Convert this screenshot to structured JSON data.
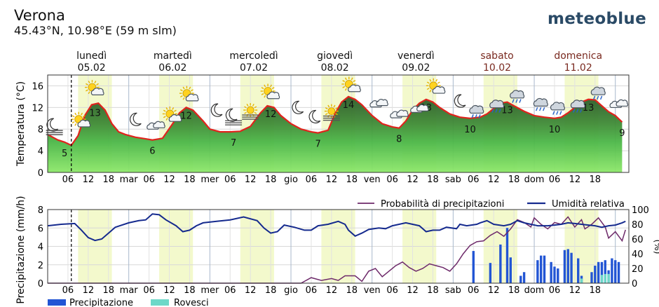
{
  "header": {
    "location": "Verona",
    "coordinates": "45.43°N, 10.98°E (59 m slm)",
    "brand": "meteoblue"
  },
  "days": [
    {
      "name": "lunedì",
      "date": "05.02",
      "weekend": false
    },
    {
      "name": "martedì",
      "date": "06.02",
      "weekend": false
    },
    {
      "name": "mercoledì",
      "date": "07.02",
      "weekend": false
    },
    {
      "name": "giovedì",
      "date": "08.02",
      "weekend": false
    },
    {
      "name": "venerdì",
      "date": "09.02",
      "weekend": false
    },
    {
      "name": "sabato",
      "date": "10.02",
      "weekend": true
    },
    {
      "name": "domenica",
      "date": "11.02",
      "weekend": true
    }
  ],
  "weekend_color": "#7a2a20",
  "time_labels": [
    "06",
    "12",
    "18",
    "mar",
    "06",
    "12",
    "18",
    "mer",
    "06",
    "12",
    "18",
    "gio",
    "06",
    "12",
    "18",
    "ven",
    "06",
    "12",
    "18",
    "sab",
    "06",
    "12",
    "18",
    "dom",
    "06",
    "12",
    "18"
  ],
  "now_hour": 7,
  "weather_icons": [
    {
      "hour": 2,
      "temp": 8.4,
      "kind": "moon-fog"
    },
    {
      "hour": 10,
      "temp": 9.3,
      "kind": "sun-cloud"
    },
    {
      "hour": 14,
      "temp": 15.2,
      "kind": "sun-cloud"
    },
    {
      "hour": 26,
      "temp": 9.8,
      "kind": "moon"
    },
    {
      "hour": 32,
      "temp": 8.7,
      "kind": "cloud"
    },
    {
      "hour": 37,
      "temp": 10.3,
      "kind": "sun-cloud"
    },
    {
      "hour": 42,
      "temp": 14.1,
      "kind": "sun-cloud"
    },
    {
      "hour": 50,
      "temp": 11.5,
      "kind": "moon"
    },
    {
      "hour": 55,
      "temp": 10.2,
      "kind": "moon-fog"
    },
    {
      "hour": 60,
      "temp": 11.0,
      "kind": "sun-fog"
    },
    {
      "hour": 66,
      "temp": 14.5,
      "kind": "sun-cloud"
    },
    {
      "hour": 74,
      "temp": 12.0,
      "kind": "moon"
    },
    {
      "hour": 79,
      "temp": 10.3,
      "kind": "moon"
    },
    {
      "hour": 84,
      "temp": 10.8,
      "kind": "sun-fog"
    },
    {
      "hour": 90,
      "temp": 15.8,
      "kind": "sun-cloud"
    },
    {
      "hour": 98,
      "temp": 12.8,
      "kind": "cloud"
    },
    {
      "hour": 104,
      "temp": 10.8,
      "kind": "cloud"
    },
    {
      "hour": 110,
      "temp": 11.8,
      "kind": "cloud"
    },
    {
      "hour": 115,
      "temp": 15.5,
      "kind": "sun-cloud"
    },
    {
      "hour": 122,
      "temp": 13.2,
      "kind": "moon"
    },
    {
      "hour": 127,
      "temp": 11.5,
      "kind": "rain"
    },
    {
      "hour": 133,
      "temp": 12.5,
      "kind": "rain"
    },
    {
      "hour": 139,
      "temp": 14.3,
      "kind": "rain"
    },
    {
      "hour": 146,
      "temp": 12.8,
      "kind": "rain"
    },
    {
      "hour": 151,
      "temp": 12.1,
      "kind": "rain"
    },
    {
      "hour": 157,
      "temp": 12.5,
      "kind": "rain"
    },
    {
      "hour": 163,
      "temp": 14.9,
      "kind": "rain"
    },
    {
      "hour": 169,
      "temp": 12.7,
      "kind": "cloud"
    }
  ],
  "chart_data": [
    {
      "type": "area",
      "ylabel": "Temperatura (°C)",
      "ylim": [
        0,
        18
      ],
      "yticks": [
        0,
        4,
        8,
        12,
        16
      ],
      "x_unit": "hours from 05.02 00:00",
      "temperature": [
        [
          0,
          7
        ],
        [
          3,
          6
        ],
        [
          5,
          5.6
        ],
        [
          7,
          5
        ],
        [
          9,
          6.8
        ],
        [
          11,
          10.5
        ],
        [
          13,
          12.5
        ],
        [
          15,
          12.8
        ],
        [
          17,
          11.5
        ],
        [
          19,
          9
        ],
        [
          21,
          7.5
        ],
        [
          23,
          7
        ],
        [
          26,
          6.5
        ],
        [
          29,
          6.2
        ],
        [
          31,
          6
        ],
        [
          34,
          6.3
        ],
        [
          37,
          9
        ],
        [
          39,
          11
        ],
        [
          41,
          12
        ],
        [
          43,
          11.5
        ],
        [
          46,
          9.5
        ],
        [
          48,
          8
        ],
        [
          51,
          7.5
        ],
        [
          54,
          7.5
        ],
        [
          57,
          7.6
        ],
        [
          60,
          8.5
        ],
        [
          63,
          11
        ],
        [
          65,
          12.3
        ],
        [
          67,
          12
        ],
        [
          69,
          10.5
        ],
        [
          72,
          9
        ],
        [
          75,
          8
        ],
        [
          78,
          7.5
        ],
        [
          80,
          7.3
        ],
        [
          83,
          7.8
        ],
        [
          85,
          10.8
        ],
        [
          87,
          13
        ],
        [
          89,
          14
        ],
        [
          91,
          13.5
        ],
        [
          93,
          12.5
        ],
        [
          96,
          10.5
        ],
        [
          99,
          9
        ],
        [
          102,
          8.4
        ],
        [
          104,
          8.2
        ],
        [
          106,
          9.5
        ],
        [
          108,
          11.5
        ],
        [
          110,
          12.8
        ],
        [
          112,
          13.5
        ],
        [
          114,
          13
        ],
        [
          116,
          12
        ],
        [
          119,
          10.8
        ],
        [
          122,
          10.2
        ],
        [
          125,
          10
        ],
        [
          128,
          10.2
        ],
        [
          130,
          10.8
        ],
        [
          132,
          11.8
        ],
        [
          134,
          12.8
        ],
        [
          136,
          13
        ],
        [
          138,
          12.3
        ],
        [
          141,
          11.3
        ],
        [
          144,
          10.5
        ],
        [
          147,
          10.2
        ],
        [
          150,
          10
        ],
        [
          152,
          10.2
        ],
        [
          154,
          11
        ],
        [
          156,
          12
        ],
        [
          158,
          13
        ],
        [
          160,
          13.5
        ],
        [
          162,
          13.4
        ],
        [
          164,
          12.3
        ],
        [
          166,
          11.2
        ],
        [
          168,
          10.5
        ],
        [
          170,
          9.3
        ]
      ],
      "labels": [
        {
          "hour": 5,
          "value": "5",
          "pos": "below"
        },
        {
          "hour": 14,
          "value": "13",
          "pos": "above"
        },
        {
          "hour": 31,
          "value": "6",
          "pos": "below"
        },
        {
          "hour": 41,
          "value": "12",
          "pos": "above"
        },
        {
          "hour": 55,
          "value": "7",
          "pos": "below"
        },
        {
          "hour": 66,
          "value": "12",
          "pos": "above"
        },
        {
          "hour": 80,
          "value": "7",
          "pos": "below"
        },
        {
          "hour": 89,
          "value": "14",
          "pos": "above"
        },
        {
          "hour": 104,
          "value": "8",
          "pos": "below"
        },
        {
          "hour": 112,
          "value": "13",
          "pos": "above"
        },
        {
          "hour": 125,
          "value": "10",
          "pos": "below"
        },
        {
          "hour": 136,
          "value": "13",
          "pos": "above"
        },
        {
          "hour": 150,
          "value": "10",
          "pos": "below"
        },
        {
          "hour": 160,
          "value": "13",
          "pos": "above"
        },
        {
          "hour": 170,
          "value": "9",
          "pos": "below"
        }
      ]
    },
    {
      "type": "bar",
      "ylabel": "Precipitazione (mm/h)",
      "ylim": [
        0,
        8
      ],
      "yticks": [
        0,
        2,
        4,
        6,
        8
      ],
      "ylim_right": [
        0,
        100
      ],
      "yticks_right": [
        0,
        20,
        40,
        60,
        80,
        100
      ],
      "legend": {
        "probability": "Probabilità di precipitazioni",
        "humidity": "Umidità relativa",
        "precipitation": "Precipitazione",
        "showers": "Rovesci"
      },
      "precipitation": [
        [
          126,
          3.5
        ],
        [
          131,
          2.2
        ],
        [
          134,
          4.2
        ],
        [
          136,
          6
        ],
        [
          137,
          2.8
        ],
        [
          140,
          0.8
        ],
        [
          141,
          1.2
        ],
        [
          145,
          2.5
        ],
        [
          146,
          3.0
        ],
        [
          147,
          3.0
        ],
        [
          149,
          2.3
        ],
        [
          150,
          1.8
        ],
        [
          151,
          1.6
        ],
        [
          153,
          3.6
        ],
        [
          154,
          3.7
        ],
        [
          155,
          3.3
        ],
        [
          157,
          2.7
        ],
        [
          158,
          0.8
        ],
        [
          161,
          1.2
        ],
        [
          162,
          1.9
        ],
        [
          163,
          2.3
        ],
        [
          164,
          2.3
        ],
        [
          165,
          2.5
        ],
        [
          166,
          1.4
        ],
        [
          167,
          2.7
        ],
        [
          168,
          2.5
        ],
        [
          169,
          2.3
        ]
      ],
      "showers": [
        [
          158,
          0.5
        ],
        [
          164,
          0.9
        ],
        [
          165,
          1.0
        ],
        [
          166,
          1.0
        ]
      ],
      "probability": [
        [
          0,
          0
        ],
        [
          75,
          0
        ],
        [
          78,
          0.6
        ],
        [
          81,
          0.3
        ],
        [
          84,
          0.5
        ],
        [
          86,
          0.3
        ],
        [
          88,
          0.8
        ],
        [
          91,
          0.8
        ],
        [
          93,
          0.2
        ],
        [
          95,
          1.3
        ],
        [
          97,
          1.6
        ],
        [
          99,
          0.7
        ],
        [
          101,
          1.3
        ],
        [
          103,
          1.9
        ],
        [
          105,
          2.3
        ],
        [
          107,
          1.7
        ],
        [
          109,
          1.3
        ],
        [
          111,
          1.6
        ],
        [
          113,
          2.1
        ],
        [
          115,
          1.9
        ],
        [
          117,
          1.7
        ],
        [
          119,
          1.3
        ],
        [
          121,
          2.1
        ],
        [
          123,
          3.2
        ],
        [
          125,
          4.1
        ],
        [
          127,
          4.5
        ],
        [
          129,
          4.6
        ],
        [
          131,
          5.2
        ],
        [
          133,
          5.6
        ],
        [
          135,
          5.1
        ],
        [
          137,
          5.9
        ],
        [
          139,
          6.9
        ],
        [
          141,
          6.6
        ],
        [
          143,
          6.1
        ],
        [
          144,
          7.1
        ],
        [
          146,
          6.4
        ],
        [
          148,
          5.9
        ],
        [
          150,
          6.6
        ],
        [
          152,
          6.4
        ],
        [
          154,
          7.2
        ],
        [
          156,
          6.1
        ],
        [
          158,
          6.9
        ],
        [
          159,
          5.9
        ],
        [
          161,
          6.4
        ],
        [
          163,
          7.1
        ],
        [
          165,
          6.1
        ],
        [
          166,
          4.9
        ],
        [
          168,
          5.6
        ],
        [
          170,
          4.6
        ],
        [
          171,
          5.8
        ]
      ],
      "humidity": [
        [
          0,
          78
        ],
        [
          4,
          80
        ],
        [
          8,
          81
        ],
        [
          10,
          72
        ],
        [
          12,
          62
        ],
        [
          14,
          58
        ],
        [
          16,
          60
        ],
        [
          18,
          68
        ],
        [
          20,
          76
        ],
        [
          24,
          82
        ],
        [
          27,
          85
        ],
        [
          29,
          86
        ],
        [
          31,
          94
        ],
        [
          33,
          93
        ],
        [
          35,
          86
        ],
        [
          38,
          78
        ],
        [
          40,
          70
        ],
        [
          42,
          72
        ],
        [
          44,
          78
        ],
        [
          46,
          82
        ],
        [
          50,
          84
        ],
        [
          54,
          86
        ],
        [
          58,
          90
        ],
        [
          62,
          85
        ],
        [
          64,
          75
        ],
        [
          66,
          68
        ],
        [
          68,
          70
        ],
        [
          70,
          79
        ],
        [
          73,
          76
        ],
        [
          76,
          72
        ],
        [
          78,
          72
        ],
        [
          80,
          78
        ],
        [
          83,
          80
        ],
        [
          86,
          84
        ],
        [
          88,
          80
        ],
        [
          89,
          72
        ],
        [
          91,
          64
        ],
        [
          93,
          68
        ],
        [
          95,
          73
        ],
        [
          98,
          75
        ],
        [
          100,
          74
        ],
        [
          102,
          78
        ],
        [
          104,
          80
        ],
        [
          106,
          82
        ],
        [
          108,
          80
        ],
        [
          110,
          78
        ],
        [
          112,
          70
        ],
        [
          114,
          72
        ],
        [
          116,
          72
        ],
        [
          118,
          76
        ],
        [
          121,
          74
        ],
        [
          122,
          80
        ],
        [
          124,
          78
        ],
        [
          127,
          80
        ],
        [
          128,
          82
        ],
        [
          130,
          85
        ],
        [
          132,
          80
        ],
        [
          135,
          78
        ],
        [
          137,
          80
        ],
        [
          139,
          85
        ],
        [
          141,
          82
        ],
        [
          143,
          80
        ],
        [
          145,
          78
        ],
        [
          148,
          78
        ],
        [
          150,
          79
        ],
        [
          152,
          80
        ],
        [
          154,
          82
        ],
        [
          156,
          81
        ],
        [
          158,
          80
        ],
        [
          160,
          79
        ],
        [
          162,
          78
        ],
        [
          164,
          76
        ],
        [
          166,
          78
        ],
        [
          168,
          79
        ],
        [
          170,
          82
        ],
        [
          171,
          84
        ]
      ]
    }
  ]
}
